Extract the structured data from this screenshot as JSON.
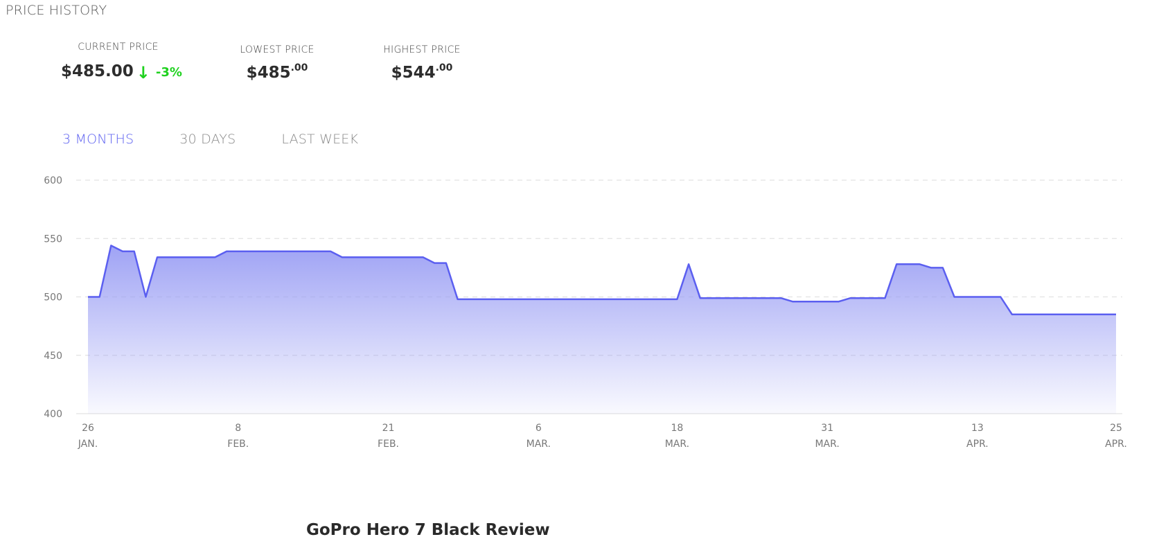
{
  "section_title": "PRICE HISTORY",
  "stats": {
    "current": {
      "label": "CURRENT PRICE",
      "value": "$485.00",
      "arrow": "↓",
      "change": "-3%"
    },
    "lowest": {
      "label": "LOWEST PRICE",
      "dollars": "$485",
      "cents": ".00"
    },
    "highest": {
      "label": "HIGHEST PRICE",
      "dollars": "$544",
      "cents": ".00"
    }
  },
  "tabs": [
    {
      "label": "3 MONTHS",
      "active": true
    },
    {
      "label": "30 DAYS",
      "active": false
    },
    {
      "label": "LAST WEEK",
      "active": false
    }
  ],
  "colors": {
    "line": "#5b5ff0",
    "fill": "#9a9ef4",
    "up_down": "#1fd11f",
    "grid": "#e2e2e2"
  },
  "chart_data": {
    "type": "area",
    "ylim": [
      400,
      600
    ],
    "yticks": [
      400,
      450,
      500,
      550,
      600
    ],
    "grid": true,
    "x_start": "2019-01-26",
    "x_end": "2019-04-25",
    "xticks": [
      {
        "date": "2019-01-26",
        "day": "26",
        "month": "JAN."
      },
      {
        "date": "2019-02-08",
        "day": "8",
        "month": "FEB."
      },
      {
        "date": "2019-02-21",
        "day": "21",
        "month": "FEB."
      },
      {
        "date": "2019-03-06",
        "day": "6",
        "month": "MAR."
      },
      {
        "date": "2019-03-18",
        "day": "18",
        "month": "MAR."
      },
      {
        "date": "2019-03-31",
        "day": "31",
        "month": "MAR."
      },
      {
        "date": "2019-04-13",
        "day": "13",
        "month": "APR."
      },
      {
        "date": "2019-04-25",
        "day": "25",
        "month": "APR."
      }
    ],
    "series": [
      {
        "points": [
          [
            "2019-01-26",
            500
          ],
          [
            "2019-01-27",
            500
          ],
          [
            "2019-01-28",
            544
          ],
          [
            "2019-01-29",
            539
          ],
          [
            "2019-01-30",
            539
          ],
          [
            "2019-01-31",
            500
          ],
          [
            "2019-02-01",
            534
          ],
          [
            "2019-02-02",
            534
          ],
          [
            "2019-02-03",
            534
          ],
          [
            "2019-02-04",
            534
          ],
          [
            "2019-02-05",
            534
          ],
          [
            "2019-02-06",
            534
          ],
          [
            "2019-02-07",
            539
          ],
          [
            "2019-02-08",
            539
          ],
          [
            "2019-02-09",
            539
          ],
          [
            "2019-02-10",
            539
          ],
          [
            "2019-02-11",
            539
          ],
          [
            "2019-02-12",
            539
          ],
          [
            "2019-02-13",
            539
          ],
          [
            "2019-02-14",
            539
          ],
          [
            "2019-02-15",
            539
          ],
          [
            "2019-02-16",
            539
          ],
          [
            "2019-02-17",
            534
          ],
          [
            "2019-02-18",
            534
          ],
          [
            "2019-02-19",
            534
          ],
          [
            "2019-02-20",
            534
          ],
          [
            "2019-02-21",
            534
          ],
          [
            "2019-02-22",
            534
          ],
          [
            "2019-02-23",
            534
          ],
          [
            "2019-02-24",
            534
          ],
          [
            "2019-02-25",
            529
          ],
          [
            "2019-02-26",
            529
          ],
          [
            "2019-02-27",
            498
          ],
          [
            "2019-02-28",
            498
          ],
          [
            "2019-03-01",
            498
          ],
          [
            "2019-03-02",
            498
          ],
          [
            "2019-03-03",
            498
          ],
          [
            "2019-03-04",
            498
          ],
          [
            "2019-03-05",
            498
          ],
          [
            "2019-03-06",
            498
          ],
          [
            "2019-03-07",
            498
          ],
          [
            "2019-03-08",
            498
          ],
          [
            "2019-03-09",
            498
          ],
          [
            "2019-03-10",
            498
          ],
          [
            "2019-03-11",
            498
          ],
          [
            "2019-03-12",
            498
          ],
          [
            "2019-03-13",
            498
          ],
          [
            "2019-03-14",
            498
          ],
          [
            "2019-03-15",
            498
          ],
          [
            "2019-03-16",
            498
          ],
          [
            "2019-03-17",
            498
          ],
          [
            "2019-03-18",
            498
          ],
          [
            "2019-03-19",
            528
          ],
          [
            "2019-03-20",
            499
          ],
          [
            "2019-03-21",
            499
          ],
          [
            "2019-03-22",
            499
          ],
          [
            "2019-03-23",
            499
          ],
          [
            "2019-03-24",
            499
          ],
          [
            "2019-03-25",
            499
          ],
          [
            "2019-03-26",
            499
          ],
          [
            "2019-03-27",
            499
          ],
          [
            "2019-03-28",
            496
          ],
          [
            "2019-03-29",
            496
          ],
          [
            "2019-03-30",
            496
          ],
          [
            "2019-03-31",
            496
          ],
          [
            "2019-04-01",
            496
          ],
          [
            "2019-04-02",
            499
          ],
          [
            "2019-04-03",
            499
          ],
          [
            "2019-04-04",
            499
          ],
          [
            "2019-04-05",
            499
          ],
          [
            "2019-04-06",
            528
          ],
          [
            "2019-04-07",
            528
          ],
          [
            "2019-04-08",
            528
          ],
          [
            "2019-04-09",
            525
          ],
          [
            "2019-04-10",
            525
          ],
          [
            "2019-04-11",
            500
          ],
          [
            "2019-04-12",
            500
          ],
          [
            "2019-04-13",
            500
          ],
          [
            "2019-04-14",
            500
          ],
          [
            "2019-04-15",
            500
          ],
          [
            "2019-04-16",
            485
          ],
          [
            "2019-04-17",
            485
          ],
          [
            "2019-04-18",
            485
          ],
          [
            "2019-04-19",
            485
          ],
          [
            "2019-04-20",
            485
          ],
          [
            "2019-04-21",
            485
          ],
          [
            "2019-04-22",
            485
          ],
          [
            "2019-04-23",
            485
          ],
          [
            "2019-04-24",
            485
          ],
          [
            "2019-04-25",
            485
          ]
        ]
      }
    ]
  },
  "review_title": "GoPro Hero 7 Black Review"
}
